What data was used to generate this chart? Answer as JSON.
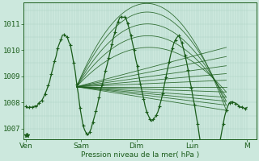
{
  "background_color": "#cce8dd",
  "plot_bg_color": "#cce8dd",
  "grid_color_v": "#aacfc2",
  "grid_color_h": "#aacfc2",
  "line_color": "#1a5c1a",
  "marker_color": "#1a5c1a",
  "xlabel": "Pression niveau de la mer( hPa )",
  "xlabel_color": "#1a5c1a",
  "tick_color": "#1a5c1a",
  "yticks": [
    1007,
    1008,
    1009,
    1010,
    1011
  ],
  "ylim": [
    1006.6,
    1011.8
  ],
  "xtick_labels": [
    "Ven",
    "Sam",
    "Dim",
    "Lun",
    "M"
  ],
  "xtick_positions": [
    0,
    24,
    48,
    72,
    96
  ],
  "xlim": [
    -1,
    100
  ]
}
